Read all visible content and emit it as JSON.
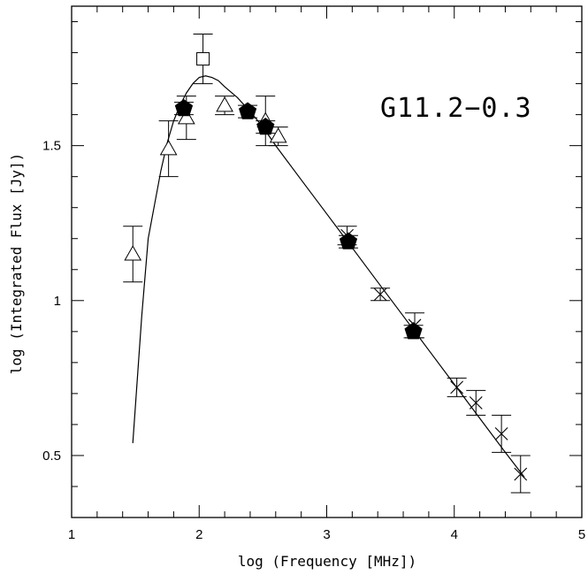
{
  "chart_data": {
    "type": "scatter",
    "title": "",
    "xlabel": "log (Frequency [MHz])",
    "ylabel": "log (Integrated Flux [Jy])",
    "annotation": "G11.2−0.3",
    "xlim": [
      1,
      5
    ],
    "ylim": [
      0.3,
      1.95
    ],
    "x_ticks": [
      1,
      2,
      3,
      4,
      5
    ],
    "x_tick_labels": [
      "1",
      "2",
      "3",
      "4",
      "5"
    ],
    "y_ticks": [
      0.5,
      1.0,
      1.5
    ],
    "y_tick_labels": [
      "0.5",
      "1",
      "1.5"
    ],
    "grid": false,
    "series": [
      {
        "marker": "triangle",
        "points": [
          {
            "x": 1.48,
            "y": 1.15,
            "err": 0.09
          },
          {
            "x": 1.76,
            "y": 1.49,
            "err": 0.09
          },
          {
            "x": 1.9,
            "y": 1.59,
            "err": 0.07
          },
          {
            "x": 2.2,
            "y": 1.63,
            "err": 0.03
          },
          {
            "x": 2.52,
            "y": 1.58,
            "err": 0.08
          },
          {
            "x": 2.62,
            "y": 1.53,
            "err": 0.03
          }
        ]
      },
      {
        "marker": "square",
        "points": [
          {
            "x": 2.03,
            "y": 1.78,
            "err": 0.08
          }
        ]
      },
      {
        "marker": "filled-pentagon",
        "points": [
          {
            "x": 1.88,
            "y": 1.62,
            "err": 0.02
          },
          {
            "x": 2.38,
            "y": 1.61,
            "err": 0.02
          },
          {
            "x": 2.52,
            "y": 1.56,
            "err": 0.02
          },
          {
            "x": 3.17,
            "y": 1.19,
            "err": 0.02
          },
          {
            "x": 3.68,
            "y": 0.9,
            "err": 0.02
          }
        ]
      },
      {
        "marker": "cross",
        "points": [
          {
            "x": 3.16,
            "y": 1.21,
            "err": 0.03
          },
          {
            "x": 3.42,
            "y": 1.02,
            "err": 0.02
          },
          {
            "x": 3.69,
            "y": 0.92,
            "err": 0.04
          },
          {
            "x": 4.02,
            "y": 0.72,
            "err": 0.03
          },
          {
            "x": 4.17,
            "y": 0.67,
            "err": 0.04
          },
          {
            "x": 4.37,
            "y": 0.57,
            "err": 0.06
          },
          {
            "x": 4.52,
            "y": 0.44,
            "err": 0.06
          }
        ]
      }
    ],
    "fit_curve": {
      "x": [
        1.48,
        1.55,
        1.6,
        1.65,
        1.7,
        1.75,
        1.8,
        1.85,
        1.9,
        1.95,
        2.0,
        2.05,
        2.1,
        2.15,
        2.2,
        2.3,
        2.4,
        2.5,
        2.6,
        2.8,
        3.0,
        3.2,
        3.4,
        3.6,
        3.8,
        4.0,
        4.2,
        4.4,
        4.55
      ],
      "y": [
        0.54,
        0.95,
        1.2,
        1.31,
        1.42,
        1.51,
        1.58,
        1.63,
        1.67,
        1.7,
        1.72,
        1.725,
        1.72,
        1.71,
        1.69,
        1.655,
        1.61,
        1.56,
        1.5,
        1.39,
        1.28,
        1.17,
        1.06,
        0.95,
        0.84,
        0.73,
        0.62,
        0.51,
        0.43
      ]
    }
  }
}
